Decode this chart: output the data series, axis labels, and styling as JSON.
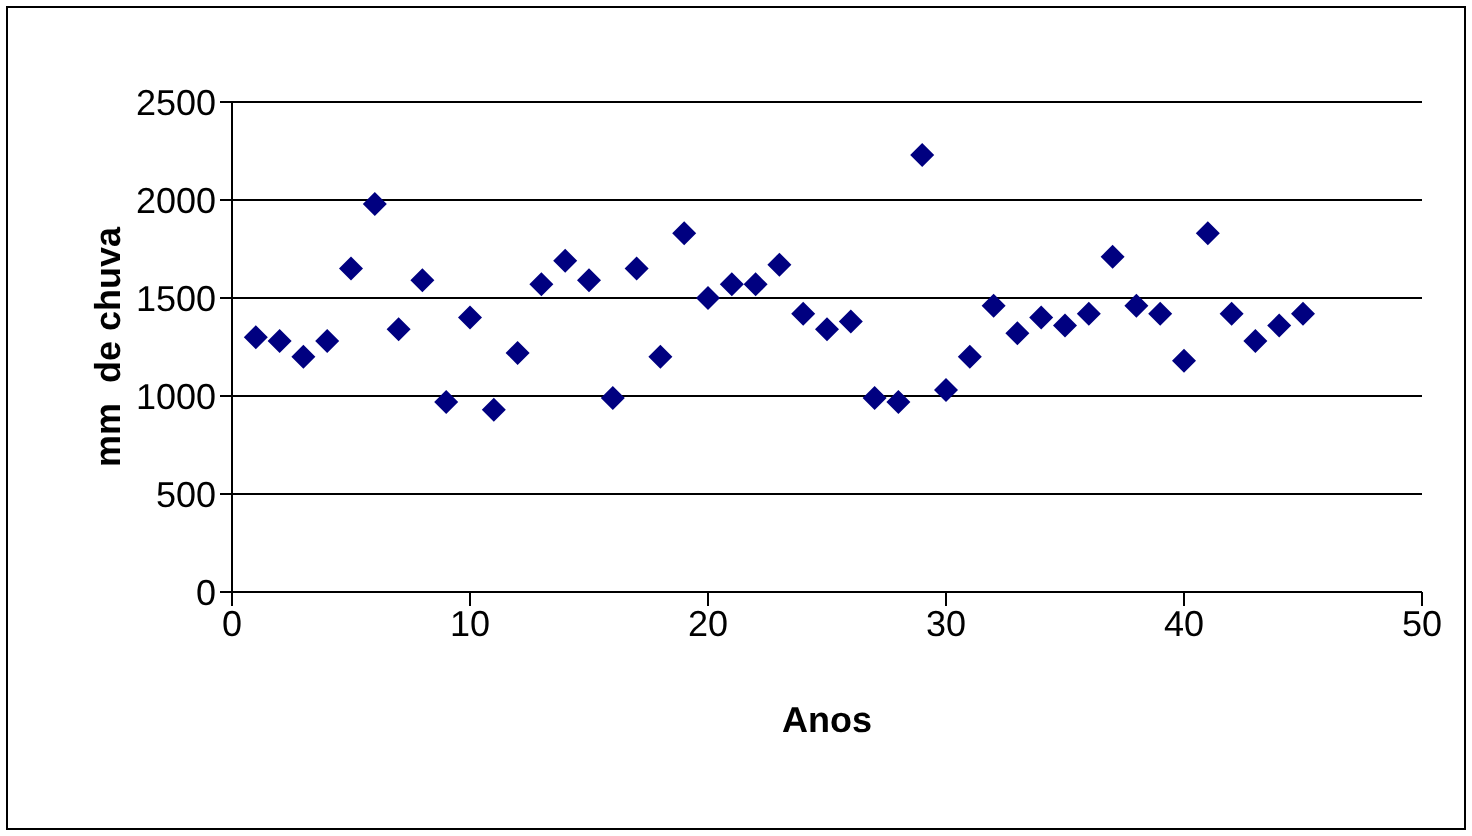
{
  "chart_data": {
    "type": "scatter",
    "xlabel": "Anos",
    "ylabel": "mm  de chuva",
    "x": [
      1,
      2,
      3,
      4,
      5,
      6,
      7,
      8,
      9,
      10,
      11,
      12,
      13,
      14,
      15,
      16,
      17,
      18,
      19,
      20,
      21,
      22,
      23,
      24,
      25,
      26,
      27,
      28,
      29,
      30,
      31,
      32,
      33,
      34,
      35,
      36,
      37,
      38,
      39,
      40,
      41,
      42,
      43,
      44,
      45
    ],
    "values": [
      1300,
      1280,
      1200,
      1280,
      1650,
      1980,
      1340,
      1590,
      970,
      1400,
      930,
      1220,
      1570,
      1690,
      1590,
      990,
      1650,
      1200,
      1830,
      1500,
      1570,
      1570,
      1670,
      1420,
      1340,
      1380,
      990,
      970,
      2230,
      1030,
      1200,
      1460,
      1320,
      1400,
      1360,
      1420,
      1710,
      1460,
      1420,
      1180,
      1830,
      1420,
      1280,
      1360,
      1420
    ],
    "color": "#000080",
    "marker": "diamond",
    "xlim": [
      0,
      50
    ],
    "xticks": [
      0,
      10,
      20,
      30,
      40,
      50
    ],
    "ylim": [
      0,
      2500
    ],
    "yticks": [
      0,
      500,
      1000,
      1500,
      2000,
      2500
    ],
    "grid": "y"
  }
}
